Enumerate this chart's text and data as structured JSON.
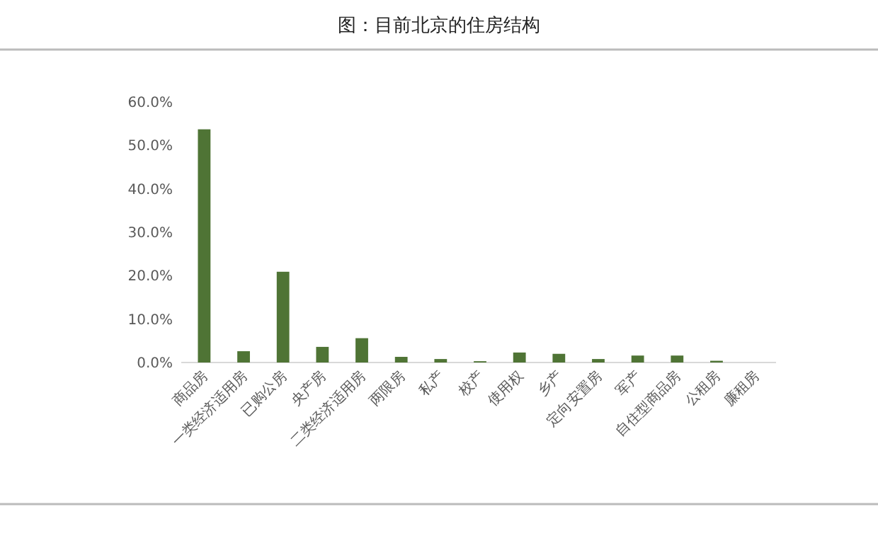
{
  "chart_data": {
    "type": "bar",
    "title": "图：目前北京的住房结构",
    "categories": [
      "商品房",
      "一类经济适用房",
      "已购公房",
      "央产房",
      "二类经济适用房",
      "两限房",
      "私产",
      "校产",
      "使用权",
      "乡产",
      "定向安置房",
      "军产",
      "自住型商品房",
      "公租房",
      "廉租房"
    ],
    "values": [
      53.7,
      2.6,
      20.9,
      3.6,
      5.6,
      1.3,
      0.8,
      0.3,
      2.3,
      2.0,
      0.8,
      1.6,
      1.6,
      0.4,
      0
    ],
    "color": "#4f7435",
    "ylim": [
      0,
      60
    ],
    "yticks": [
      {
        "value": 0,
        "label": "0.0%"
      },
      {
        "value": 10,
        "label": "10.0%"
      },
      {
        "value": 20,
        "label": "20.0%"
      },
      {
        "value": 30,
        "label": "30.0%"
      },
      {
        "value": 40,
        "label": "40.0%"
      },
      {
        "value": 50,
        "label": "50.0%"
      },
      {
        "value": 60,
        "label": "60.0%"
      }
    ],
    "grid": false
  }
}
